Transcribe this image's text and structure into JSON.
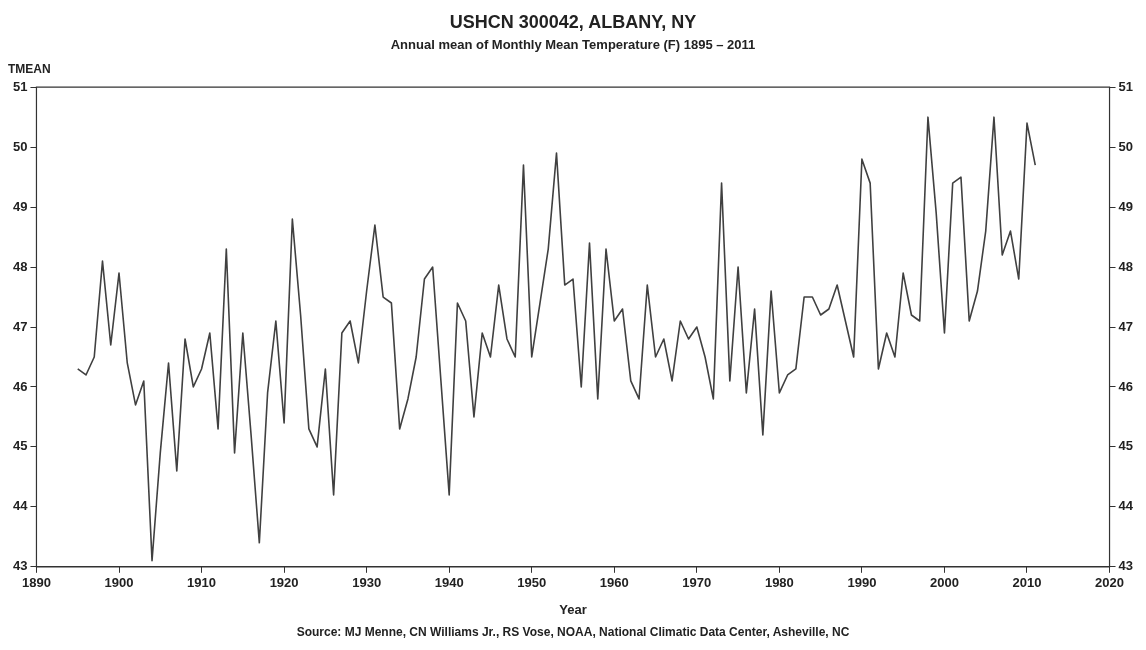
{
  "chart_data": {
    "type": "line",
    "title": "USHCN 300042, ALBANY, NY",
    "subtitle": "Annual mean of Monthly Mean Temperature (F) 1895 – 2011",
    "xlabel": "Year",
    "ylabel": "TMEAN",
    "x": [
      1895,
      1896,
      1897,
      1898,
      1899,
      1900,
      1901,
      1902,
      1903,
      1904,
      1905,
      1906,
      1907,
      1908,
      1909,
      1910,
      1911,
      1912,
      1913,
      1914,
      1915,
      1916,
      1917,
      1918,
      1919,
      1920,
      1921,
      1922,
      1923,
      1924,
      1925,
      1926,
      1927,
      1928,
      1929,
      1930,
      1931,
      1932,
      1933,
      1934,
      1935,
      1936,
      1937,
      1938,
      1939,
      1940,
      1941,
      1942,
      1943,
      1944,
      1945,
      1946,
      1947,
      1948,
      1949,
      1950,
      1951,
      1952,
      1953,
      1954,
      1955,
      1956,
      1957,
      1958,
      1959,
      1960,
      1961,
      1962,
      1963,
      1964,
      1965,
      1966,
      1967,
      1968,
      1969,
      1970,
      1971,
      1972,
      1973,
      1974,
      1975,
      1976,
      1977,
      1978,
      1979,
      1980,
      1981,
      1982,
      1983,
      1984,
      1985,
      1986,
      1987,
      1988,
      1989,
      1990,
      1991,
      1992,
      1993,
      1994,
      1995,
      1996,
      1997,
      1998,
      1999,
      2000,
      2001,
      2002,
      2003,
      2004,
      2005,
      2006,
      2007,
      2008,
      2009,
      2010,
      2011
    ],
    "series": [
      {
        "color": "#404040",
        "values": [
          46.3,
          46.2,
          46.5,
          48.1,
          46.7,
          47.9,
          46.4,
          45.7,
          46.1,
          43.1,
          44.9,
          46.4,
          44.6,
          46.8,
          46.0,
          46.3,
          46.9,
          45.3,
          48.3,
          44.9,
          46.9,
          45.2,
          43.4,
          45.9,
          47.1,
          45.4,
          48.8,
          47.2,
          45.3,
          45.0,
          46.3,
          44.2,
          46.9,
          47.1,
          46.4,
          47.6,
          48.7,
          47.5,
          47.4,
          45.3,
          45.8,
          46.5,
          47.8,
          48.0,
          46.1,
          44.2,
          47.4,
          47.1,
          45.5,
          46.9,
          46.5,
          47.7,
          46.8,
          46.5,
          49.7,
          46.5,
          47.4,
          48.3,
          49.9,
          47.7,
          47.8,
          46.0,
          48.4,
          45.8,
          48.3,
          47.1,
          47.3,
          46.1,
          45.8,
          47.7,
          46.5,
          46.8,
          46.1,
          47.1,
          46.8,
          47.0,
          46.5,
          45.8,
          49.4,
          46.1,
          48.0,
          45.9,
          47.3,
          45.2,
          47.6,
          45.9,
          46.2,
          46.3,
          47.5,
          47.5,
          47.2,
          47.3,
          47.7,
          47.1,
          46.5,
          49.8,
          49.4,
          46.3,
          46.9,
          46.5,
          47.9,
          47.2,
          47.1,
          50.5,
          48.9,
          46.9,
          49.4,
          49.5,
          47.1,
          47.6,
          48.6,
          50.5,
          48.2,
          48.6,
          47.8,
          50.4,
          49.7
        ]
      }
    ],
    "xlim": [
      1890,
      2020
    ],
    "xticks": [
      1890,
      1900,
      1910,
      1920,
      1930,
      1940,
      1950,
      1960,
      1970,
      1980,
      1990,
      2000,
      2010,
      2020
    ],
    "ylim": [
      43,
      51
    ],
    "yticks": [
      43,
      44,
      45,
      46,
      47,
      48,
      49,
      50,
      51
    ],
    "y2lim": [
      43,
      51
    ],
    "y2ticks": [
      43,
      44,
      45,
      46,
      47,
      48,
      49,
      50,
      51
    ],
    "grid": false,
    "legend": false,
    "marker": "none",
    "line_style": "solid",
    "annotations": [
      "Source: MJ Menne, CN Williams Jr., RS Vose, NOAA, National Climatic Data Center, Asheville, NC"
    ]
  }
}
